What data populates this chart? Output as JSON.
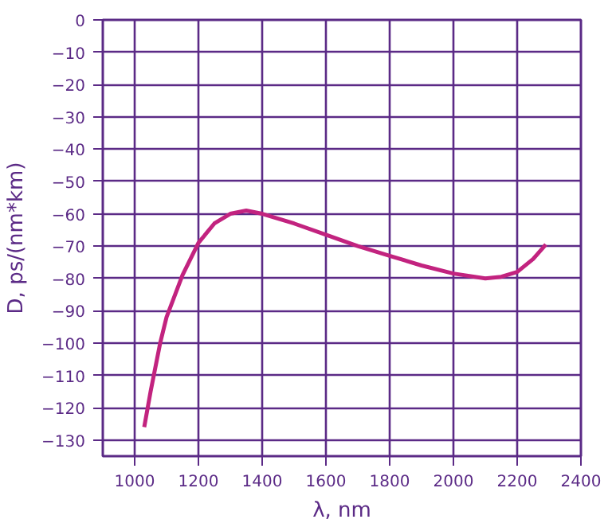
{
  "chart_data": {
    "type": "line",
    "xlabel": "λ, nm",
    "ylabel": "D, ps/(nm*km)",
    "xlim": [
      900,
      2400
    ],
    "ylim": [
      -135,
      0
    ],
    "xticks": [
      1000,
      1200,
      1400,
      1600,
      1800,
      2000,
      2200,
      2400
    ],
    "yticks": [
      0,
      -10,
      -20,
      -30,
      -40,
      -50,
      -60,
      -70,
      -80,
      -90,
      -100,
      -110,
      -120,
      -130
    ],
    "grid": true,
    "marker": "none",
    "line_style": "solid",
    "series": [
      {
        "color": "#c2237f",
        "x": [
          1030,
          1050,
          1080,
          1100,
          1150,
          1200,
          1250,
          1300,
          1350,
          1400,
          1500,
          1600,
          1700,
          1800,
          1900,
          2000,
          2100,
          2150,
          2200,
          2250,
          2290
        ],
        "values": [
          -126,
          -115,
          -100,
          -92,
          -79,
          -69,
          -63,
          -60,
          -59,
          -60,
          -63,
          -66.5,
          -70,
          -73,
          -76,
          -78.5,
          -80,
          -79.5,
          -78,
          -74,
          -69.5
        ]
      }
    ]
  }
}
